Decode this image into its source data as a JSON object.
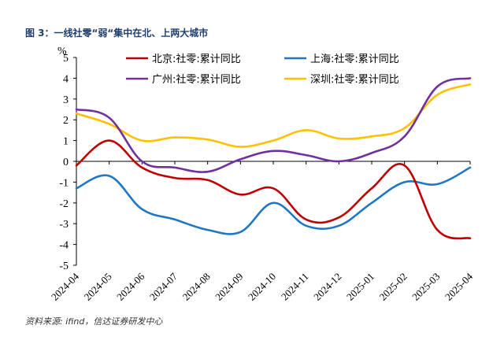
{
  "chart_data": {
    "type": "line",
    "title": "图 3：一线社零“弱“集中在北、上两大城市",
    "ylabel": "%",
    "xlabel": "",
    "ylim": [
      -5,
      5
    ],
    "yticks": [
      5,
      4,
      3,
      2,
      1,
      0,
      -1,
      -2,
      -3,
      -4,
      -5
    ],
    "categories": [
      "2024-04",
      "2024-05",
      "2024-06",
      "2024-07",
      "2024-08",
      "2024-09",
      "2024-10",
      "2024-11",
      "2024-12",
      "2025-01",
      "2025-02",
      "2025-03",
      "2025-04"
    ],
    "series": [
      {
        "name": "北京:社零:累计同比",
        "color": "#c00000",
        "values": [
          -0.2,
          1.0,
          -0.3,
          -0.8,
          -0.9,
          -1.6,
          -1.3,
          -2.8,
          -2.7,
          -1.3,
          -0.2,
          -3.3,
          -3.7
        ]
      },
      {
        "name": "上海:社零:累计同比",
        "color": "#1f77c4",
        "values": [
          -1.3,
          -0.7,
          -2.3,
          -2.8,
          -3.3,
          -3.4,
          -2.0,
          -3.1,
          -3.1,
          -2.0,
          -1.0,
          -1.1,
          -0.3
        ]
      },
      {
        "name": "广州:社零:累计同比",
        "color": "#7030a0",
        "values": [
          2.5,
          2.1,
          0.0,
          -0.3,
          -0.5,
          0.1,
          0.5,
          0.3,
          0.0,
          0.4,
          1.2,
          3.6,
          4.0
        ]
      },
      {
        "name": "深圳:社零:累计同比",
        "color": "#ffc000",
        "values": [
          2.3,
          1.8,
          1.0,
          1.15,
          1.05,
          0.7,
          1.0,
          1.5,
          1.1,
          1.2,
          1.6,
          3.2,
          3.7
        ]
      }
    ],
    "legend_position": "top",
    "source": "资料来源: ifind，信达证券研发中心"
  }
}
